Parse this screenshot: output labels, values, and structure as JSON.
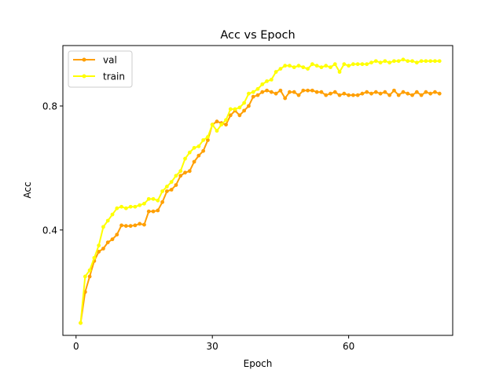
{
  "chart_data": {
    "type": "line",
    "title": "Acc vs Epoch",
    "xlabel": "Epoch",
    "ylabel": "Acc",
    "xlim": [
      -2.9,
      82.9
    ],
    "ylim": [
      0.06,
      0.995
    ],
    "xticks": [
      0,
      30,
      60
    ],
    "yticks": [
      0.4,
      0.8
    ],
    "grid": false,
    "legend_placement": "top-left",
    "series": [
      {
        "name": "val",
        "color": "#ff9f00",
        "x": [
          1,
          2,
          3,
          4,
          5,
          6,
          7,
          8,
          9,
          10,
          11,
          12,
          13,
          14,
          15,
          16,
          17,
          18,
          19,
          20,
          21,
          22,
          23,
          24,
          25,
          26,
          27,
          28,
          29,
          30,
          31,
          32,
          33,
          34,
          35,
          36,
          37,
          38,
          39,
          40,
          41,
          42,
          43,
          44,
          45,
          46,
          47,
          48,
          49,
          50,
          51,
          52,
          53,
          54,
          55,
          56,
          57,
          58,
          59,
          60,
          61,
          62,
          63,
          64,
          65,
          66,
          67,
          68,
          69,
          70,
          71,
          72,
          73,
          74,
          75,
          76,
          77,
          78,
          79,
          80
        ],
        "values": [
          0.1,
          0.2,
          0.25,
          0.3,
          0.33,
          0.34,
          0.36,
          0.37,
          0.385,
          0.415,
          0.413,
          0.413,
          0.415,
          0.42,
          0.417,
          0.46,
          0.46,
          0.463,
          0.49,
          0.525,
          0.53,
          0.545,
          0.575,
          0.585,
          0.59,
          0.62,
          0.64,
          0.655,
          0.69,
          0.74,
          0.75,
          0.745,
          0.74,
          0.77,
          0.785,
          0.77,
          0.785,
          0.8,
          0.83,
          0.835,
          0.845,
          0.85,
          0.845,
          0.84,
          0.85,
          0.825,
          0.845,
          0.845,
          0.835,
          0.85,
          0.85,
          0.85,
          0.845,
          0.845,
          0.835,
          0.84,
          0.845,
          0.835,
          0.84,
          0.835,
          0.835,
          0.835,
          0.84,
          0.845,
          0.84,
          0.845,
          0.84,
          0.845,
          0.835,
          0.85,
          0.835,
          0.845,
          0.84,
          0.835,
          0.845,
          0.835,
          0.845,
          0.84,
          0.845,
          0.84
        ]
      },
      {
        "name": "train",
        "color": "#ffff00",
        "x": [
          1,
          2,
          3,
          4,
          5,
          6,
          7,
          8,
          9,
          10,
          11,
          12,
          13,
          14,
          15,
          16,
          17,
          18,
          19,
          20,
          21,
          22,
          23,
          24,
          25,
          26,
          27,
          28,
          29,
          30,
          31,
          32,
          33,
          34,
          35,
          36,
          37,
          38,
          39,
          40,
          41,
          42,
          43,
          44,
          45,
          46,
          47,
          48,
          49,
          50,
          51,
          52,
          53,
          54,
          55,
          56,
          57,
          58,
          59,
          60,
          61,
          62,
          63,
          64,
          65,
          66,
          67,
          68,
          69,
          70,
          71,
          72,
          73,
          74,
          75,
          76,
          77,
          78,
          79,
          80
        ],
        "values": [
          0.1,
          0.25,
          0.27,
          0.31,
          0.35,
          0.41,
          0.43,
          0.45,
          0.47,
          0.475,
          0.47,
          0.475,
          0.475,
          0.48,
          0.485,
          0.5,
          0.5,
          0.495,
          0.525,
          0.54,
          0.555,
          0.575,
          0.59,
          0.63,
          0.65,
          0.665,
          0.67,
          0.69,
          0.7,
          0.74,
          0.72,
          0.74,
          0.755,
          0.79,
          0.79,
          0.795,
          0.81,
          0.84,
          0.845,
          0.855,
          0.87,
          0.88,
          0.885,
          0.91,
          0.92,
          0.93,
          0.93,
          0.925,
          0.93,
          0.925,
          0.92,
          0.935,
          0.93,
          0.925,
          0.93,
          0.925,
          0.935,
          0.91,
          0.935,
          0.93,
          0.935,
          0.935,
          0.935,
          0.935,
          0.94,
          0.945,
          0.94,
          0.945,
          0.94,
          0.945,
          0.945,
          0.95,
          0.945,
          0.945,
          0.94,
          0.945,
          0.945,
          0.945,
          0.945,
          0.945
        ]
      }
    ]
  }
}
